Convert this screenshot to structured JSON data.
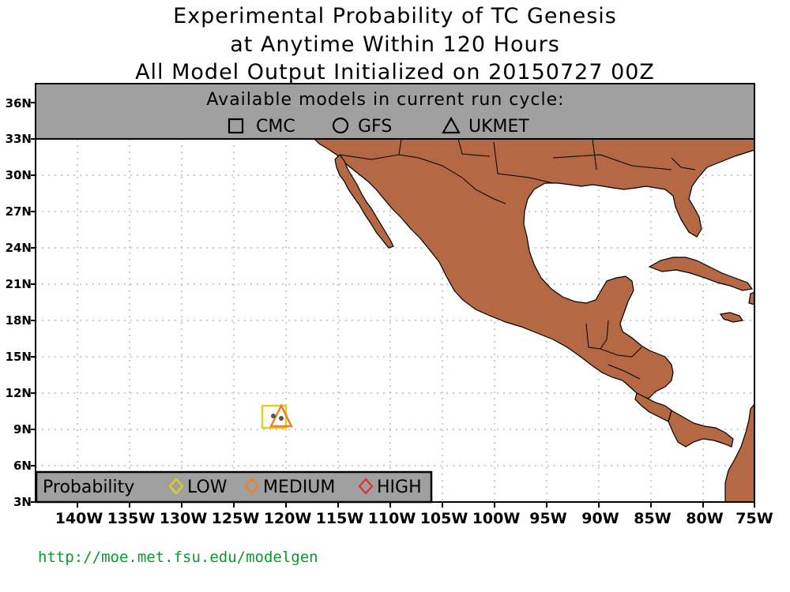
{
  "title": {
    "line1": "Experimental Probability of TC Genesis",
    "line2": "at Anytime Within 120 Hours",
    "line3": "All Model Output Initialized on 20150727 00Z"
  },
  "models_box": {
    "heading": "Available models in current run cycle:",
    "models": [
      {
        "label": "CMC",
        "symbol": "square-icon"
      },
      {
        "label": "GFS",
        "symbol": "circle-icon"
      },
      {
        "label": "UKMET",
        "symbol": "triangle-icon"
      }
    ]
  },
  "probability_legend": {
    "heading": "Probability",
    "levels": [
      {
        "label": "LOW",
        "color": "#e0d020"
      },
      {
        "label": "MEDIUM",
        "color": "#f08020"
      },
      {
        "label": "HIGH",
        "color": "#e03030"
      }
    ]
  },
  "axes": {
    "lat_labels": [
      "36N",
      "33N",
      "30N",
      "27N",
      "24N",
      "21N",
      "18N",
      "15N",
      "12N",
      "9N",
      "6N",
      "3N"
    ],
    "lon_labels": [
      "140W",
      "135W",
      "130W",
      "125W",
      "120W",
      "115W",
      "110W",
      "105W",
      "100W",
      "95W",
      "90W",
      "85W",
      "80W",
      "75W"
    ]
  },
  "colors": {
    "land": "#b46844",
    "ocean": "#ffffff",
    "legend_bg": "#a0a0a0",
    "url": "#0a9a2a"
  },
  "genesis_markers": [
    {
      "lat": 10.0,
      "lon": -121.3,
      "model": "CMC",
      "probability": "LOW"
    },
    {
      "lat": 10.0,
      "lon": -120.5,
      "model": "UKMET",
      "probability": "MEDIUM"
    }
  ],
  "source_url": "http://moe.met.fsu.edu/modelgen"
}
